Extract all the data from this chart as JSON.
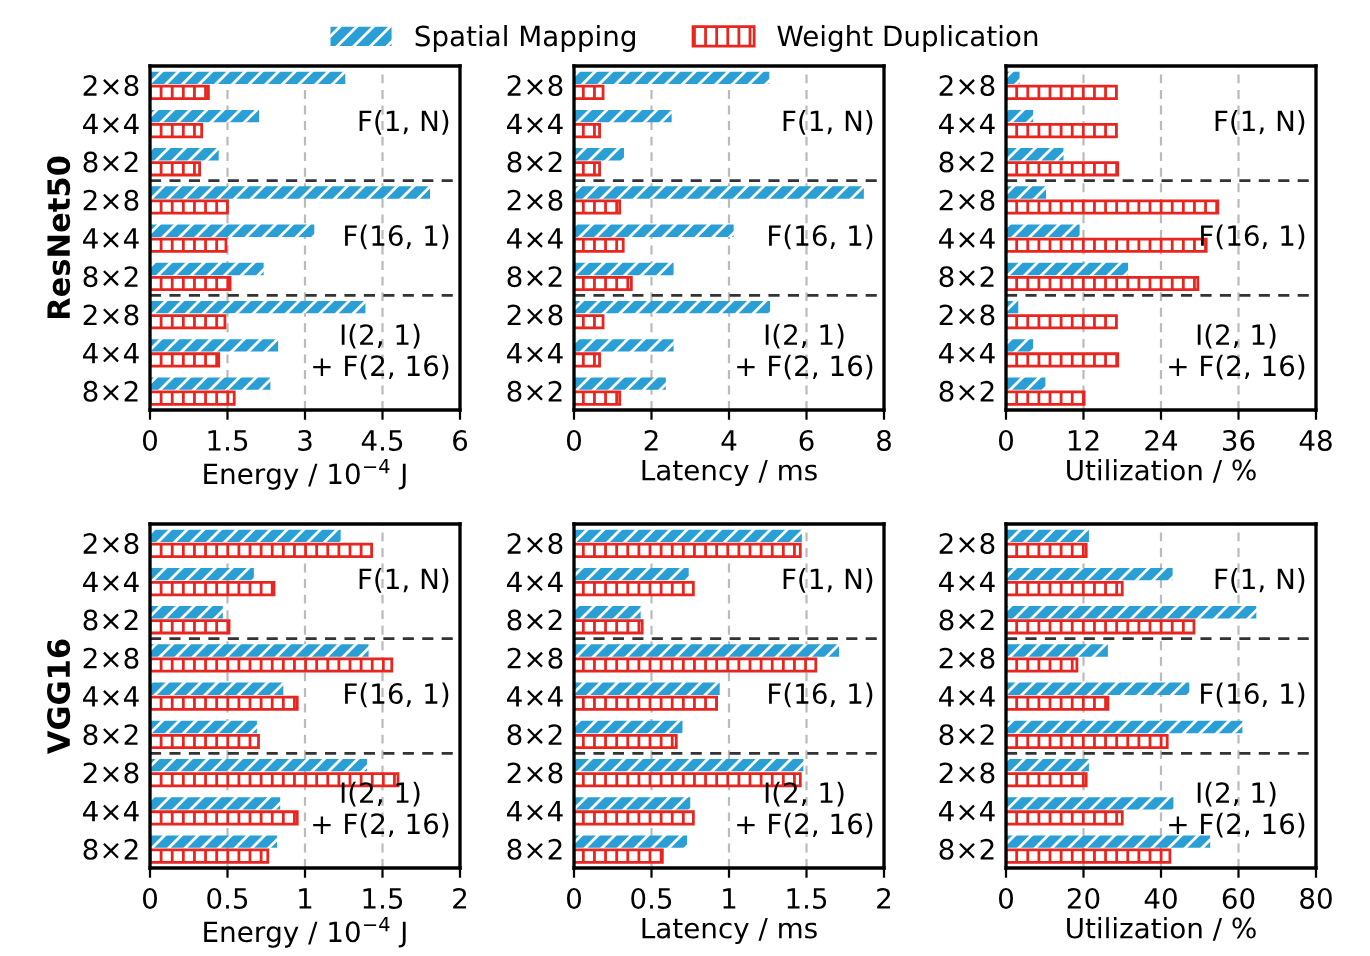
{
  "chart_data": [
    {
      "type": "bar",
      "orientation": "horizontal",
      "ylabel": "ResNet50",
      "xlabel": "Energy / 10$^{−4}$ J",
      "categories": [
        "2×8",
        "4×4",
        "8×2",
        "2×8",
        "4×4",
        "8×2",
        "2×8",
        "4×4",
        "8×2"
      ],
      "xlim": [
        0,
        6
      ],
      "xticks": [
        0,
        1.5,
        3,
        4.5,
        6
      ],
      "grid": "x",
      "legend": "top",
      "annotations": [
        "F(1, N)",
        "F(16, 1)",
        "I(2, 1)\n+ F(2, 16)"
      ],
      "series": [
        {
          "name": "Spatial Mapping",
          "color": "#2a9fd6",
          "values": [
            3.78,
            2.11,
            1.33,
            5.42,
            3.18,
            2.2,
            4.17,
            2.48,
            2.33
          ]
        },
        {
          "name": "Weight Duplication",
          "color": "#e8251f",
          "values": [
            1.13,
            1.0,
            0.96,
            1.5,
            1.47,
            1.55,
            1.45,
            1.33,
            1.63
          ]
        }
      ]
    },
    {
      "type": "bar",
      "orientation": "horizontal",
      "xlabel": "Latency / ms",
      "categories": [
        "2×8",
        "4×4",
        "8×2",
        "2×8",
        "4×4",
        "8×2",
        "2×8",
        "4×4",
        "8×2"
      ],
      "xlim": [
        0,
        8
      ],
      "xticks": [
        0,
        2,
        4,
        6,
        8
      ],
      "grid": "x",
      "annotations": [
        "F(1, N)",
        "F(16, 1)",
        "I(2, 1)\n+ F(2, 16)"
      ],
      "series": [
        {
          "color": "#2a9fd6",
          "values": [
            5.04,
            2.52,
            1.29,
            7.48,
            4.12,
            2.57,
            5.06,
            2.57,
            2.37
          ]
        },
        {
          "color": "#e8251f",
          "values": [
            0.75,
            0.66,
            0.66,
            1.18,
            1.27,
            1.48,
            0.75,
            0.66,
            1.18
          ]
        }
      ]
    },
    {
      "type": "bar",
      "orientation": "horizontal",
      "xlabel": "Utilization / %",
      "categories": [
        "2×8",
        "4×4",
        "8×2",
        "2×8",
        "4×4",
        "8×2",
        "2×8",
        "4×4",
        "8×2"
      ],
      "xlim": [
        0,
        48
      ],
      "xticks": [
        0,
        12,
        24,
        36,
        48
      ],
      "grid": "x",
      "annotations": [
        "F(1, N)",
        "F(16, 1)",
        "I(2, 1)\n+ F(2, 16)"
      ],
      "series": [
        {
          "color": "#2a9fd6",
          "values": [
            2.1,
            4.2,
            8.9,
            6.2,
            11.4,
            18.9,
            1.9,
            4.2,
            6.1
          ]
        },
        {
          "color": "#e8251f",
          "values": [
            17.1,
            17.1,
            17.3,
            32.8,
            31.0,
            29.7,
            17.1,
            17.3,
            12.1
          ]
        }
      ]
    },
    {
      "type": "bar",
      "orientation": "horizontal",
      "ylabel": "VGG16",
      "xlabel": "Energy / 10$^{−4}$ J",
      "categories": [
        "2×8",
        "4×4",
        "8×2",
        "2×8",
        "4×4",
        "8×2",
        "2×8",
        "4×4",
        "8×2"
      ],
      "xlim": [
        0,
        2
      ],
      "xticks": [
        0,
        0.5,
        1,
        1.5,
        2
      ],
      "grid": "x",
      "annotations": [
        "F(1, N)",
        "F(16, 1)",
        "I(2, 1)\n+ F(2, 16)"
      ],
      "series": [
        {
          "color": "#2a9fd6",
          "values": [
            1.23,
            0.67,
            0.47,
            1.41,
            0.86,
            0.69,
            1.4,
            0.84,
            0.82
          ]
        },
        {
          "color": "#e8251f",
          "values": [
            1.43,
            0.8,
            0.51,
            1.56,
            0.95,
            0.7,
            1.6,
            0.95,
            0.76
          ]
        }
      ]
    },
    {
      "type": "bar",
      "orientation": "horizontal",
      "xlabel": "Latency / ms",
      "categories": [
        "2×8",
        "4×4",
        "8×2",
        "2×8",
        "4×4",
        "8×2",
        "2×8",
        "4×4",
        "8×2"
      ],
      "xlim": [
        0,
        2
      ],
      "xticks": [
        0,
        0.5,
        1,
        1.5,
        2
      ],
      "grid": "x",
      "annotations": [
        "F(1, N)",
        "F(16, 1)",
        "I(2, 1)\n+ F(2, 16)"
      ],
      "series": [
        {
          "color": "#2a9fd6",
          "values": [
            1.47,
            0.74,
            0.43,
            1.71,
            0.94,
            0.7,
            1.48,
            0.75,
            0.73
          ]
        },
        {
          "color": "#e8251f",
          "values": [
            1.46,
            0.77,
            0.44,
            1.56,
            0.92,
            0.66,
            1.46,
            0.77,
            0.57
          ]
        }
      ]
    },
    {
      "type": "bar",
      "orientation": "horizontal",
      "xlabel": "Utilization / %",
      "categories": [
        "2×8",
        "4×4",
        "8×2",
        "2×8",
        "4×4",
        "8×2",
        "2×8",
        "4×4",
        "8×2"
      ],
      "xlim": [
        0,
        80
      ],
      "xticks": [
        0,
        20,
        40,
        60,
        80
      ],
      "grid": "x",
      "annotations": [
        "F(1, N)",
        "F(16, 1)",
        "I(2, 1)\n+ F(2, 16)"
      ],
      "series": [
        {
          "color": "#2a9fd6",
          "values": [
            21.4,
            43,
            64.6,
            26.3,
            47.3,
            61,
            21.4,
            43.2,
            52.7
          ]
        },
        {
          "color": "#e8251f",
          "values": [
            20.7,
            30,
            48.5,
            18.3,
            26.3,
            41.6,
            20.7,
            30,
            42.3
          ]
        }
      ]
    }
  ]
}
